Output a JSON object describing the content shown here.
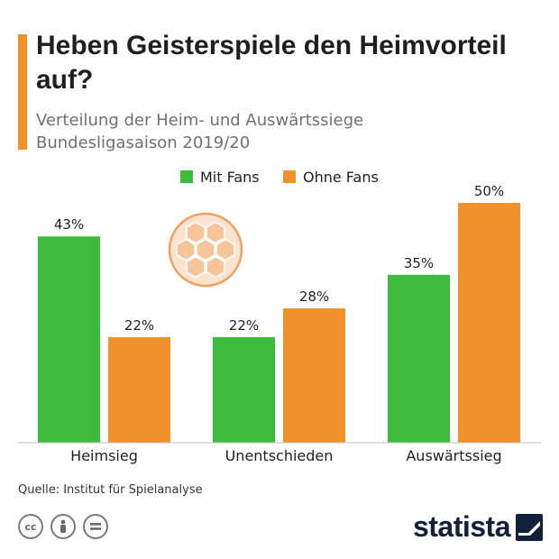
{
  "title": "Heben Geisterspiele den Heimvorteil auf?",
  "subtitle": {
    "line1": "Verteilung der Heim- und Auswärtssiege",
    "line2": "Bundesligasaison 2019/20"
  },
  "source": "Quelle: Institut für Spielanalyse",
  "brand": "statista",
  "colors": {
    "accent": "#f0912c",
    "green": "#3dbb3d",
    "orange": "#f0912c",
    "brand": "#12213a"
  },
  "icons": [
    "cc-icon",
    "by-icon",
    "nd-icon",
    "soccer-ball-icon",
    "statista-logo-icon"
  ],
  "chart_data": {
    "type": "bar",
    "categories": [
      "Heimsieg",
      "Unentschieden",
      "Auswärtssieg"
    ],
    "series": [
      {
        "name": "Mit Fans",
        "values": [
          43,
          22,
          35
        ],
        "labels": [
          "43%",
          "22%",
          "35%"
        ],
        "color": "#3dbb3d"
      },
      {
        "name": "Ohne Fans",
        "values": [
          22,
          28,
          50
        ],
        "labels": [
          "22%",
          "28%",
          "50%"
        ],
        "color": "#f0912c"
      }
    ],
    "ylim": [
      0,
      50
    ],
    "grid": false,
    "legend": "top-center"
  }
}
